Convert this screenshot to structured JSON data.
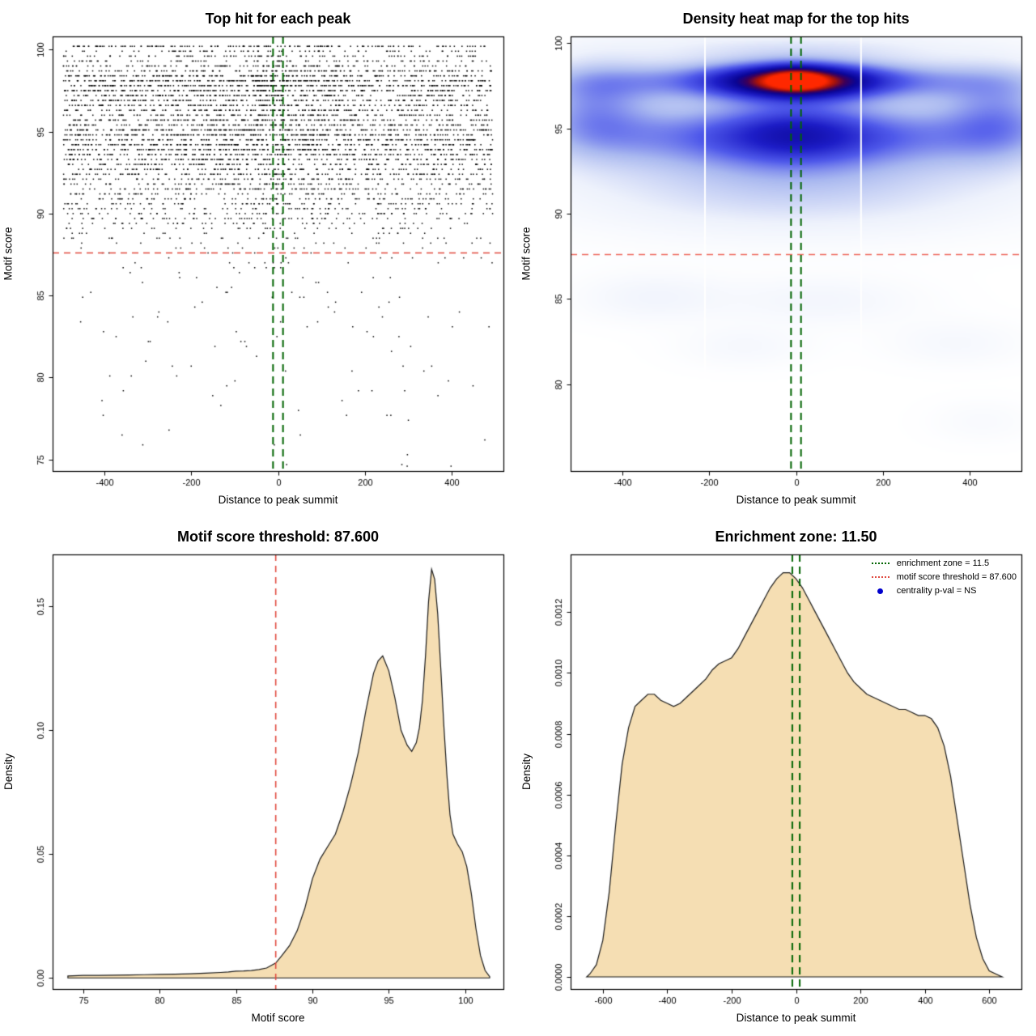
{
  "figure": {
    "background": "#ffffff",
    "layout": "2x2 R base-graphics motif centrality QC figure"
  },
  "chart_data": [
    {
      "type": "scatter",
      "title": "Top hit for each peak",
      "xlabel": "Distance to peak summit",
      "ylabel": "Motif score",
      "xlim": [
        -520,
        520
      ],
      "ylim": [
        74.3,
        100.8
      ],
      "xticks": [
        -400,
        -200,
        0,
        200,
        400
      ],
      "xtick_labels": [
        "-400",
        "-200",
        "0",
        "200",
        "400"
      ],
      "yticks": [
        75,
        80,
        85,
        90,
        95,
        100
      ],
      "ytick_labels": [
        "75",
        "80",
        "85",
        "90",
        "95",
        "100"
      ],
      "point_color": "#000000",
      "threshold": {
        "y": 87.6,
        "color": "#e04a3f"
      },
      "enrichment_zone": {
        "x": [
          -11.5,
          11.5
        ],
        "color": "#006400"
      },
      "points_generator": {
        "n": 5500,
        "seed": 42,
        "x_max": 495,
        "y_max": 100.2,
        "y_min": 74.6,
        "quantize": 0.3,
        "x_source_chart": 3,
        "y_source_chart": 2,
        "note": "x drawn from distance-density marginal, y from motif-score-density marginal; scores quantized into horizontal bands"
      }
    },
    {
      "type": "heatmap",
      "title": "Density heat map for the top hits",
      "xlabel": "Distance to peak summit",
      "ylabel": "Motif score",
      "xlim": [
        -520,
        520
      ],
      "ylim": [
        74.9,
        100.4
      ],
      "xticks": [
        -400,
        -200,
        0,
        200,
        400
      ],
      "xtick_labels": [
        "-400",
        "-200",
        "0",
        "200",
        "400"
      ],
      "yticks": [
        80,
        85,
        90,
        95,
        100
      ],
      "ytick_labels": [
        "80",
        "85",
        "90",
        "95",
        "100"
      ],
      "threshold": {
        "y": 87.6,
        "color": "#ef6a5e"
      },
      "enrichment_zone": {
        "x": [
          -11.5,
          11.5
        ],
        "color": "#006400"
      },
      "gap_lines_x": [
        -210,
        150
      ],
      "dmax": 1.35,
      "kernels": [
        {
          "x": 0,
          "y": 97.8,
          "sx": 460,
          "sy": 1.15,
          "a": 0.58
        },
        {
          "x": 0,
          "y": 97.8,
          "sx": 160,
          "sy": 0.95,
          "a": 0.78
        },
        {
          "x": 0,
          "y": 97.9,
          "sx": 60,
          "sy": 0.7,
          "a": 0.25
        },
        {
          "x": 0,
          "y": 94.7,
          "sx": 470,
          "sy": 1.7,
          "a": 0.42
        },
        {
          "x": 0,
          "y": 94.9,
          "sx": 150,
          "sy": 2.0,
          "a": 0.22
        },
        {
          "x": 0,
          "y": 93.2,
          "sx": 520,
          "sy": 3.0,
          "a": 0.26
        },
        {
          "x": -470,
          "y": 96.3,
          "sx": 130,
          "sy": 2.6,
          "a": 0.3
        },
        {
          "x": 470,
          "y": 95.8,
          "sx": 130,
          "sy": 2.6,
          "a": 0.3
        },
        {
          "x": 0,
          "y": 99.8,
          "sx": 450,
          "sy": 0.9,
          "a": 0.16
        },
        {
          "x": 0,
          "y": 90.6,
          "sx": 500,
          "sy": 2.3,
          "a": 0.1
        },
        {
          "x": -330,
          "y": 85.1,
          "sx": 170,
          "sy": 1.4,
          "a": 0.1
        },
        {
          "x": 60,
          "y": 84.9,
          "sx": 220,
          "sy": 1.4,
          "a": 0.09
        },
        {
          "x": -120,
          "y": 82.2,
          "sx": 150,
          "sy": 1.2,
          "a": 0.07
        },
        {
          "x": 370,
          "y": 82.4,
          "sx": 160,
          "sy": 1.3,
          "a": 0.07
        },
        {
          "x": 430,
          "y": 77.8,
          "sx": 120,
          "sy": 1.2,
          "a": 0.05
        }
      ],
      "colormap": [
        {
          "t": 0,
          "c": "#ffffff"
        },
        {
          "t": 0.1,
          "c": "#eef2fc"
        },
        {
          "t": 0.25,
          "c": "#aab9f0"
        },
        {
          "t": 0.4,
          "c": "#505aeb"
        },
        {
          "t": 0.55,
          "c": "#1e1ec8"
        },
        {
          "t": 0.7,
          "c": "#0a0596"
        },
        {
          "t": 0.8,
          "c": "#3c005a"
        },
        {
          "t": 0.9,
          "c": "#aa140a"
        },
        {
          "t": 1,
          "c": "#ff2800"
        }
      ]
    },
    {
      "type": "density",
      "title": "Motif score threshold: 87.600",
      "xlabel": "Motif score",
      "ylabel": "Density",
      "xlim": [
        73,
        102.5
      ],
      "ylim": [
        -0.0045,
        0.171
      ],
      "xticks": [
        75,
        80,
        85,
        90,
        95,
        100
      ],
      "xtick_labels": [
        "75",
        "80",
        "85",
        "90",
        "95",
        "100"
      ],
      "yticks": [
        0,
        0.05,
        0.1,
        0.15
      ],
      "ytick_labels": [
        "0.00",
        "0.05",
        "0.10",
        "0.15"
      ],
      "fill": "#f5deb3",
      "stroke": "#1a1a1a",
      "vlines": [
        {
          "x": 87.6,
          "color": "#e04a3f"
        }
      ],
      "curve": [
        [
          74,
          0.0008
        ],
        [
          75,
          0.001
        ],
        [
          76,
          0.001
        ],
        [
          77,
          0.0011
        ],
        [
          78,
          0.0012
        ],
        [
          79,
          0.0013
        ],
        [
          80,
          0.0014
        ],
        [
          81,
          0.0015
        ],
        [
          82,
          0.0017
        ],
        [
          83,
          0.0019
        ],
        [
          84,
          0.0022
        ],
        [
          84.5,
          0.0024
        ],
        [
          85,
          0.0027
        ],
        [
          85.5,
          0.0028
        ],
        [
          86,
          0.003
        ],
        [
          86.5,
          0.0034
        ],
        [
          87,
          0.004
        ],
        [
          87.6,
          0.006
        ],
        [
          88,
          0.009
        ],
        [
          88.5,
          0.013
        ],
        [
          89,
          0.019
        ],
        [
          89.5,
          0.028
        ],
        [
          90,
          0.04
        ],
        [
          90.5,
          0.048
        ],
        [
          91,
          0.053
        ],
        [
          91.5,
          0.058
        ],
        [
          92,
          0.067
        ],
        [
          92.5,
          0.078
        ],
        [
          93,
          0.091
        ],
        [
          93.5,
          0.108
        ],
        [
          94,
          0.123
        ],
        [
          94.3,
          0.128
        ],
        [
          94.6,
          0.13
        ],
        [
          95,
          0.124
        ],
        [
          95.4,
          0.113
        ],
        [
          95.8,
          0.1
        ],
        [
          96.2,
          0.094
        ],
        [
          96.5,
          0.0915
        ],
        [
          96.8,
          0.095
        ],
        [
          97,
          0.101
        ],
        [
          97.2,
          0.112
        ],
        [
          97.4,
          0.13
        ],
        [
          97.6,
          0.152
        ],
        [
          97.8,
          0.165
        ],
        [
          98,
          0.161
        ],
        [
          98.2,
          0.147
        ],
        [
          98.4,
          0.125
        ],
        [
          98.6,
          0.102
        ],
        [
          98.8,
          0.082
        ],
        [
          99,
          0.066
        ],
        [
          99.2,
          0.058
        ],
        [
          99.5,
          0.054
        ],
        [
          99.8,
          0.051
        ],
        [
          100.1,
          0.045
        ],
        [
          100.4,
          0.034
        ],
        [
          100.7,
          0.02
        ],
        [
          101,
          0.009
        ],
        [
          101.3,
          0.003
        ],
        [
          101.6,
          0.0005
        ]
      ]
    },
    {
      "type": "density",
      "title": "Enrichment zone: 11.50",
      "xlabel": "Distance to peak summit",
      "ylabel": "Density",
      "xlim": [
        -700,
        700
      ],
      "ylim": [
        -4e-05,
        0.00139
      ],
      "xticks": [
        -600,
        -400,
        -200,
        0,
        200,
        400,
        600
      ],
      "xtick_labels": [
        "-600",
        "-400",
        "-200",
        "0",
        "200",
        "400",
        "600"
      ],
      "yticks": [
        0,
        0.0002,
        0.0004,
        0.0006,
        0.0008,
        0.001,
        0.0012
      ],
      "ytick_labels": [
        "0.0000",
        "0.0002",
        "0.0004",
        "0.0006",
        "0.0008",
        "0.0010",
        "0.0012"
      ],
      "fill": "#f5deb3",
      "stroke": "#1a1a1a",
      "enrichment_zone": {
        "x": [
          -11.5,
          11.5
        ],
        "color": "#006400"
      },
      "curve": [
        [
          -650,
          0
        ],
        [
          -640,
          1e-05
        ],
        [
          -620,
          4e-05
        ],
        [
          -600,
          0.00012
        ],
        [
          -580,
          0.00028
        ],
        [
          -560,
          0.0005
        ],
        [
          -540,
          0.0007
        ],
        [
          -520,
          0.00082
        ],
        [
          -500,
          0.00089
        ],
        [
          -480,
          0.00091
        ],
        [
          -460,
          0.00093
        ],
        [
          -440,
          0.00093
        ],
        [
          -420,
          0.00091
        ],
        [
          -400,
          0.0009
        ],
        [
          -380,
          0.00089
        ],
        [
          -360,
          0.0009
        ],
        [
          -340,
          0.00092
        ],
        [
          -320,
          0.00094
        ],
        [
          -300,
          0.00096
        ],
        [
          -280,
          0.00098
        ],
        [
          -260,
          0.00101
        ],
        [
          -240,
          0.00103
        ],
        [
          -220,
          0.00104
        ],
        [
          -200,
          0.00105
        ],
        [
          -180,
          0.00108
        ],
        [
          -160,
          0.00112
        ],
        [
          -140,
          0.00116
        ],
        [
          -120,
          0.0012
        ],
        [
          -100,
          0.00124
        ],
        [
          -80,
          0.00128
        ],
        [
          -60,
          0.00131
        ],
        [
          -40,
          0.00133
        ],
        [
          -20,
          0.00133
        ],
        [
          0,
          0.00131
        ],
        [
          20,
          0.00128
        ],
        [
          40,
          0.00124
        ],
        [
          60,
          0.0012
        ],
        [
          80,
          0.00116
        ],
        [
          100,
          0.00112
        ],
        [
          120,
          0.00108
        ],
        [
          140,
          0.00104
        ],
        [
          160,
          0.001
        ],
        [
          180,
          0.00097
        ],
        [
          200,
          0.00095
        ],
        [
          220,
          0.00093
        ],
        [
          240,
          0.00092
        ],
        [
          260,
          0.00091
        ],
        [
          280,
          0.0009
        ],
        [
          300,
          0.00089
        ],
        [
          320,
          0.00088
        ],
        [
          340,
          0.00088
        ],
        [
          360,
          0.00087
        ],
        [
          380,
          0.00086
        ],
        [
          400,
          0.00086
        ],
        [
          420,
          0.00085
        ],
        [
          440,
          0.00082
        ],
        [
          460,
          0.00076
        ],
        [
          480,
          0.00066
        ],
        [
          500,
          0.00052
        ],
        [
          520,
          0.00038
        ],
        [
          540,
          0.00024
        ],
        [
          560,
          0.00013
        ],
        [
          580,
          6e-05
        ],
        [
          600,
          2e-05
        ],
        [
          620,
          1e-05
        ],
        [
          640,
          0
        ]
      ],
      "legend": {
        "items": [
          {
            "label": "enrichment zone = 11.5",
            "swatch": "line",
            "color": "#006400"
          },
          {
            "label": "motif score threshold = 87.600",
            "swatch": "line",
            "color": "#e04a3f"
          },
          {
            "label": "centrality p-val = NS",
            "swatch": "dot",
            "color": "#0000cd"
          }
        ]
      }
    }
  ]
}
